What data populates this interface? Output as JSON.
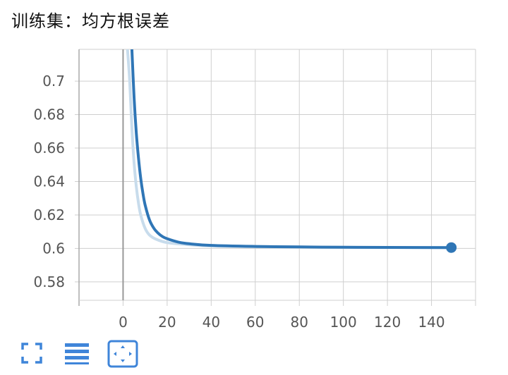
{
  "title": "训练集：均方根误差",
  "colors": {
    "series": "#2f76b6",
    "series_smoothed_bg": "#c8dcec",
    "grid": "#cfcfcf",
    "zero_axis": "#999999",
    "toolbar_icon": "#3f85d9"
  },
  "toolbar": {
    "fullscreen_icon": "fullscreen-icon",
    "data_table_icon": "list-icon",
    "fit_domain_icon": "fit-to-data-icon"
  },
  "chart_data": {
    "type": "line",
    "title": "训练集：均方根误差",
    "xlabel": "",
    "ylabel": "",
    "xlim": [
      -20,
      160
    ],
    "ylim": [
      0.569,
      0.719
    ],
    "x_ticks": [
      0,
      20,
      40,
      60,
      80,
      100,
      120,
      140
    ],
    "y_ticks": [
      0.58,
      0.6,
      0.62,
      0.64,
      0.66,
      0.68,
      0.7
    ],
    "y_tick_labels": [
      "0.58",
      "0.6",
      "0.62",
      "0.64",
      "0.66",
      "0.68",
      "0.7"
    ],
    "grid": true,
    "legend": "none",
    "series": [
      {
        "role": "raw",
        "x": [
          2,
          3,
          4,
          5,
          6,
          7,
          8,
          10,
          12,
          15,
          20,
          30,
          40,
          60,
          80,
          100,
          120,
          149
        ],
        "y": [
          0.719,
          0.7,
          0.672,
          0.651,
          0.637,
          0.627,
          0.62,
          0.612,
          0.608,
          0.6055,
          0.6035,
          0.6022,
          0.6015,
          0.601,
          0.6008,
          0.6007,
          0.6006,
          0.6005
        ]
      },
      {
        "role": "smoothed",
        "x": [
          4,
          5,
          6,
          7,
          8,
          9,
          10,
          12,
          14,
          16,
          18,
          20,
          25,
          30,
          40,
          60,
          80,
          100,
          120,
          149
        ],
        "y": [
          0.719,
          0.69,
          0.669,
          0.654,
          0.642,
          0.633,
          0.626,
          0.617,
          0.612,
          0.609,
          0.607,
          0.6058,
          0.6038,
          0.6028,
          0.6018,
          0.6012,
          0.6009,
          0.6007,
          0.6006,
          0.6005
        ]
      }
    ],
    "last_point": {
      "x": 149,
      "y": 0.6005
    }
  }
}
